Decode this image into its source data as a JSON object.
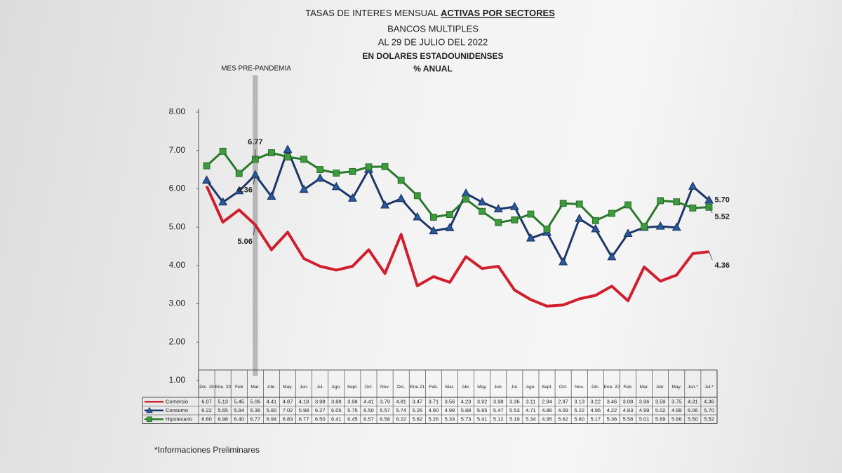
{
  "chart_data": {
    "type": "line",
    "title": "TASAS DE INTERES MENSUAL",
    "title_emphasis": "ACTIVAS POR SECTORES",
    "subtitle": [
      "BANCOS MULTIPLES",
      "AL 29 DE JULIO DEL 2022"
    ],
    "subtitle_bold": [
      "EN DOLARES ESTADOUNIDENSES",
      "% ANUAL"
    ],
    "annotation": "MES PRE-PANDEMIA",
    "footnote": "*Informaciones Preliminares",
    "categories": [
      "Dic. 19",
      "Ene. 20",
      "Feb",
      "Mar.",
      "Abr.",
      "May.",
      "Jun.",
      "Jul.",
      "Ago.",
      "Sept.",
      "Oct.",
      "Nov.",
      "Dic.",
      "Ene.21",
      "Feb.",
      "Mar.",
      "Abr.",
      "May.",
      "Jun.",
      "Jul.",
      "Ago.",
      "Sept.",
      "Oct.",
      "Nov.",
      "Dic.",
      "Ene. 22",
      "Feb.",
      "Mar.",
      "Abr.",
      "May.",
      "Jun.*",
      "Jul.*"
    ],
    "series": [
      {
        "name": "Comercio",
        "color": "#d11f2e",
        "marker": "none",
        "values": [
          6.07,
          5.13,
          5.45,
          5.06,
          4.41,
          4.87,
          4.18,
          3.98,
          3.88,
          3.98,
          4.41,
          3.79,
          4.81,
          3.47,
          3.71,
          3.56,
          4.23,
          3.92,
          3.98,
          3.36,
          3.11,
          2.94,
          2.97,
          3.13,
          3.22,
          3.46,
          3.08,
          3.96,
          3.59,
          3.75,
          4.31,
          4.36
        ],
        "value_labels": [
          "6.07",
          "5.13",
          "5.45",
          "5.06",
          "4.41",
          "4.87",
          "4.18",
          "3.98",
          "3.88",
          "3.98",
          "4.41",
          "3.79",
          "4.81",
          "3.47",
          "3.71",
          "3.56",
          "4.23",
          "3.92",
          "3.98",
          "3.36",
          "3.11",
          "2.94",
          "2.97",
          "3.13",
          "3.22",
          "3.46",
          "3.08",
          "3.96",
          "3.59",
          "3.75",
          "4.31",
          "4.36"
        ]
      },
      {
        "name": "Consumo",
        "color": "#1d3767",
        "marker": "triangle",
        "values": [
          6.22,
          5.65,
          5.94,
          6.36,
          5.8,
          7.02,
          5.98,
          6.27,
          6.05,
          5.75,
          6.5,
          5.57,
          5.74,
          5.26,
          4.9,
          4.98,
          5.88,
          5.65,
          5.47,
          5.53,
          4.71,
          4.86,
          4.09,
          5.22,
          4.95,
          4.22,
          4.83,
          4.99,
          5.02,
          4.99,
          6.06,
          5.7
        ],
        "value_labels": [
          "6.22",
          "5.65",
          "5.94",
          "6.36",
          "5.80",
          "7.02",
          "5.98",
          "6.27",
          "6.05",
          "5.75",
          "6.50",
          "5.57",
          "5.74",
          "5.26",
          "4.90",
          "4.98",
          "5.88",
          "5.65",
          "5.47",
          "5.53",
          "4.71",
          "4.86",
          "4.09",
          "5.22",
          "4.95",
          "4.22",
          "4.83",
          "4.99",
          "5.02",
          "4.99",
          "6.06",
          "5.70"
        ]
      },
      {
        "name": "Hipotecario",
        "color": "#2b7a2b",
        "marker": "square",
        "values": [
          6.6,
          6.98,
          6.4,
          6.77,
          6.94,
          6.83,
          6.77,
          6.5,
          6.41,
          6.45,
          6.57,
          6.58,
          6.22,
          5.82,
          5.26,
          5.33,
          5.73,
          5.41,
          5.12,
          5.19,
          5.34,
          4.95,
          5.62,
          5.6,
          5.17,
          5.36,
          5.58,
          5.01,
          5.69,
          5.66,
          5.5,
          5.52
        ],
        "value_labels": [
          "6.60",
          "6.98",
          "6.40",
          "6.77",
          "6.94",
          "6.83",
          "6.77",
          "6.50",
          "6.41",
          "6.45",
          "6.57",
          "6.58",
          "6.22",
          "5.82",
          "5.26",
          "5.33",
          "5.73",
          "5.41",
          "5.12",
          "5.19",
          "5.34",
          "4.95",
          "5.62",
          "5.60",
          "5.17",
          "5.36",
          "5.58",
          "5.01",
          "5.69",
          "5.66",
          "5.50",
          "5.52"
        ]
      }
    ],
    "ylim": [
      1,
      8
    ],
    "yticks": [
      {
        "value": 1,
        "label": "1.00"
      },
      {
        "value": 2,
        "label": "2.00"
      },
      {
        "value": 3,
        "label": "3.00"
      },
      {
        "value": 4,
        "label": "4.00"
      },
      {
        "value": 5,
        "label": "5.00"
      },
      {
        "value": 6,
        "label": "6.00"
      },
      {
        "value": 7,
        "label": "7.00"
      },
      {
        "value": 8,
        "label": "8.00"
      }
    ],
    "grid": false
  }
}
